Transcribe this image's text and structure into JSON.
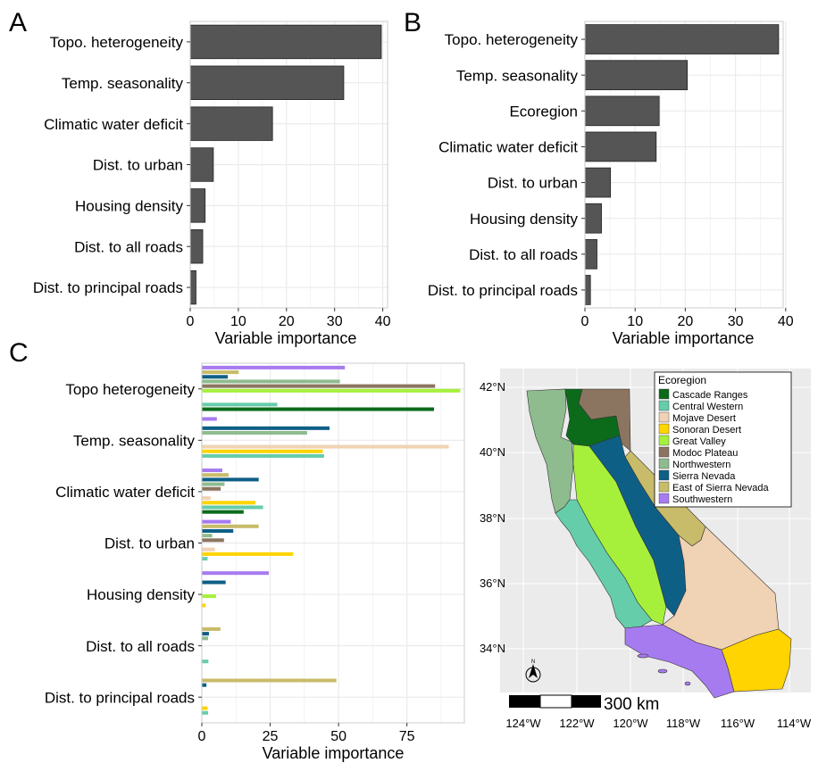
{
  "panels": {
    "a": {
      "letter": "A"
    },
    "b": {
      "letter": "B"
    },
    "c": {
      "letter": "C"
    }
  },
  "colors": {
    "bar_gray": "#555555",
    "grid": "#ebebeb",
    "map_background": "#ebebeb",
    "ecoregions": {
      "Cascade Ranges": "#0b6b1a",
      "Central Western": "#66cdaa",
      "Mojave Desert": "#f0d2b4",
      "Sonoran Desert": "#ffd400",
      "Great Valley": "#a6f03c",
      "Modoc Plateau": "#8c7560",
      "Northwestern": "#8fbc8f",
      "Sierra Nevada": "#0e5f86",
      "East of Sierra Nevada": "#c8bc6a",
      "Southwestern": "#a77bf0"
    }
  },
  "chart_data": [
    {
      "type": "bar",
      "orientation": "horizontal",
      "panel": "A",
      "categories": [
        "Topo. heterogeneity",
        "Temp. seasonality",
        "Climatic water deficit",
        "Dist. to urban",
        "Housing density",
        "Dist. to all roads",
        "Dist. to principal roads"
      ],
      "values": [
        39.7,
        31.9,
        17.1,
        4.8,
        3.1,
        2.6,
        1.2
      ],
      "xlabel": "Variable importance",
      "xlim": [
        0,
        41
      ],
      "xticks": [
        0,
        10,
        20,
        30,
        40
      ],
      "grid": true
    },
    {
      "type": "bar",
      "orientation": "horizontal",
      "panel": "B",
      "categories": [
        "Topo. heterogeneity",
        "Temp. seasonality",
        "Ecoregion",
        "Climatic water deficit",
        "Dist. to urban",
        "Housing density",
        "Dist. to all roads",
        "Dist. to principal roads"
      ],
      "values": [
        38.6,
        20.4,
        14.8,
        14.2,
        5.1,
        3.3,
        2.4,
        1.1
      ],
      "xlabel": "Variable importance",
      "xlim": [
        0,
        39.5
      ],
      "xticks": [
        0,
        10,
        20,
        30,
        40
      ],
      "grid": true
    },
    {
      "type": "bar",
      "orientation": "horizontal",
      "panel": "C",
      "categories": [
        "Topo heterogeneity",
        "Temp. seasonality",
        "Climatic water deficit",
        "Dist. to urban",
        "Housing density",
        "Dist. to all roads",
        "Dist. to principal roads"
      ],
      "series": [
        {
          "name": "Southwestern",
          "values": [
            52.3,
            5.5,
            7.5,
            10.6,
            24.5,
            0,
            0
          ]
        },
        {
          "name": "East of Sierra Nevada",
          "values": [
            13.5,
            0,
            9.8,
            20.8,
            0,
            6.8,
            49.2
          ]
        },
        {
          "name": "Sierra Nevada",
          "values": [
            9.5,
            46.7,
            20.8,
            11.5,
            8.7,
            2.6,
            1.7
          ]
        },
        {
          "name": "Northwestern",
          "values": [
            50.5,
            38.5,
            8.3,
            3.8,
            0,
            2.3,
            0
          ]
        },
        {
          "name": "Modoc Plateau",
          "values": [
            85.3,
            0,
            6.9,
            8.1,
            0,
            0,
            0
          ]
        },
        {
          "name": "Great Valley",
          "values": [
            94.5,
            0,
            0,
            0,
            5.2,
            0,
            0
          ]
        },
        {
          "name": "Mojave Desert",
          "values": [
            0,
            90.3,
            3.2,
            4.8,
            0,
            0,
            0
          ]
        },
        {
          "name": "Sonoran Desert",
          "values": [
            0,
            44.2,
            19.6,
            33.4,
            1.4,
            0,
            2.1
          ]
        },
        {
          "name": "Central Western",
          "values": [
            27.6,
            44.7,
            22.4,
            2.1,
            0,
            2.4,
            2.3
          ]
        },
        {
          "name": "Cascade Ranges",
          "values": [
            84.9,
            0,
            15.3,
            0,
            0,
            0,
            0
          ]
        }
      ],
      "xlabel": "Variable importance",
      "xlim": [
        0,
        96
      ],
      "xticks": [
        0,
        25,
        50,
        75
      ],
      "grid": true
    }
  ],
  "map": {
    "legend_title": "Ecoregion",
    "legend_items": [
      "Cascade Ranges",
      "Central Western",
      "Mojave Desert",
      "Sonoran Desert",
      "Great Valley",
      "Modoc Plateau",
      "Northwestern",
      "Sierra Nevada",
      "East of Sierra Nevada",
      "Southwestern"
    ],
    "lat_labels": [
      "42°N",
      "40°N",
      "38°N",
      "36°N",
      "34°N"
    ],
    "lon_labels": [
      "124°W",
      "122°W",
      "120°W",
      "118°W",
      "116°W",
      "114°W"
    ],
    "scale_label": "300 km",
    "north_label": "N"
  }
}
